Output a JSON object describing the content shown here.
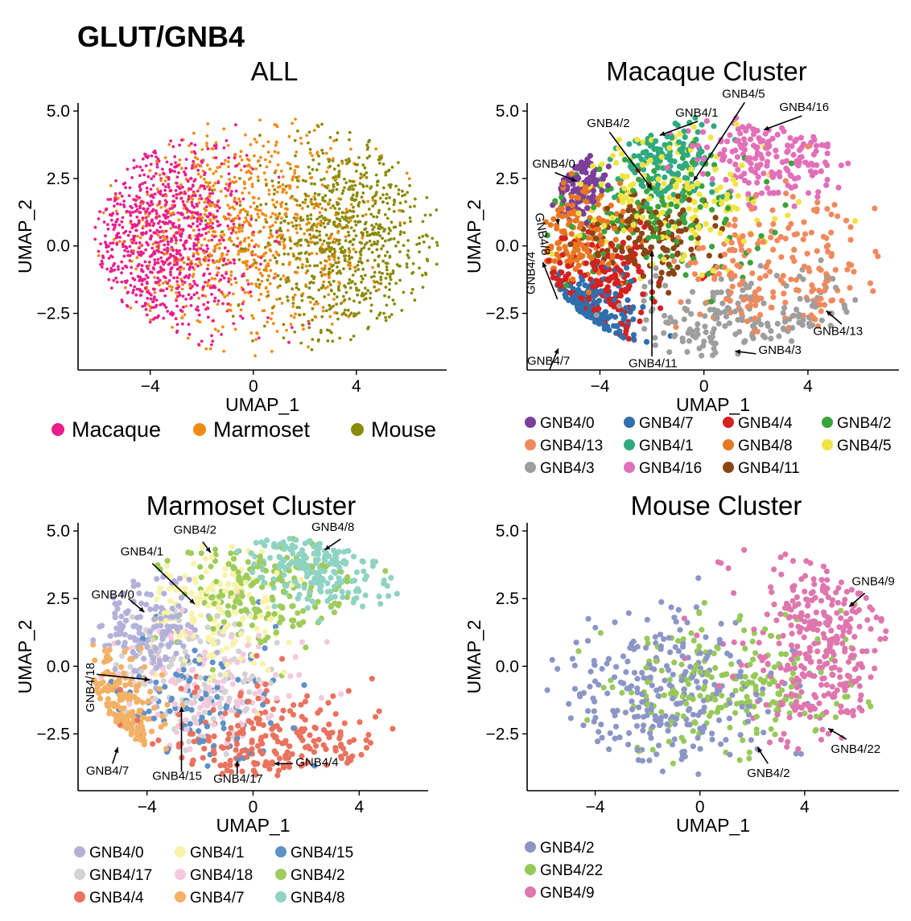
{
  "figure_title": "GLUT/GNB4",
  "chart_data": [
    {
      "id": "all",
      "type": "scatter",
      "title": "ALL",
      "xlabel": "UMAP_1",
      "ylabel": "UMAP_2",
      "xlim": [
        -6.8,
        7.5
      ],
      "ylim": [
        -4.6,
        5.3
      ],
      "xticks": [
        -4,
        0,
        4
      ],
      "yticks": [
        -2.5,
        0.0,
        2.5,
        5.0
      ],
      "xtick_labels": [
        "−4",
        "0",
        "4"
      ],
      "ytick_labels": [
        "−2.5",
        "0.0",
        "2.5",
        "5.0"
      ],
      "legend_placement": "bottom",
      "legend_style": "big",
      "legend_columns": 3,
      "series": [
        {
          "name": "Macaque",
          "color": "#e91e8c",
          "center": [
            -3.6,
            0.4
          ],
          "spread": [
            1.7,
            1.9
          ],
          "n": 900
        },
        {
          "name": "Marmoset",
          "color": "#f28a11",
          "center": [
            -0.2,
            0.6
          ],
          "spread": [
            2.4,
            2.1
          ],
          "n": 800
        },
        {
          "name": "Mouse",
          "color": "#8a8a0a",
          "center": [
            3.6,
            0.3
          ],
          "spread": [
            1.8,
            1.9
          ],
          "n": 800
        }
      ],
      "annotations": []
    },
    {
      "id": "macaque",
      "type": "scatter",
      "title": "Macaque Cluster",
      "xlabel": "UMAP_1",
      "ylabel": "UMAP_2",
      "xlim": [
        -6.8,
        7.5
      ],
      "ylim": [
        -4.6,
        5.3
      ],
      "xticks": [
        -4,
        0,
        4
      ],
      "yticks": [
        -2.5,
        0.0,
        2.5,
        5.0
      ],
      "xtick_labels": [
        "−4",
        "0",
        "4"
      ],
      "ytick_labels": [
        "−2.5",
        "0.0",
        "2.5",
        "5.0"
      ],
      "legend_placement": "bottom",
      "legend_style": "small",
      "legend_columns": 4,
      "series": [
        {
          "name": "GNB4/0",
          "color": "#7b3f9a",
          "center": [
            -5.0,
            2.4
          ],
          "spread": [
            0.7,
            0.6
          ],
          "n": 110
        },
        {
          "name": "GNB4/13",
          "color": "#f08a5d",
          "center": [
            2.8,
            -0.9
          ],
          "spread": [
            2.0,
            1.4
          ],
          "n": 200
        },
        {
          "name": "GNB4/3",
          "color": "#9e9e9e",
          "center": [
            1.4,
            -2.8
          ],
          "spread": [
            2.3,
            0.9
          ],
          "n": 180
        },
        {
          "name": "GNB4/7",
          "color": "#2f6fae",
          "center": [
            -5.0,
            -2.9
          ],
          "spread": [
            1.0,
            0.8
          ],
          "n": 160
        },
        {
          "name": "GNB4/1",
          "color": "#2faa80",
          "center": [
            -1.5,
            3.0
          ],
          "spread": [
            1.0,
            0.9
          ],
          "n": 150
        },
        {
          "name": "GNB4/16",
          "color": "#e26fb9",
          "center": [
            2.6,
            3.4
          ],
          "spread": [
            1.5,
            0.9
          ],
          "n": 180
        },
        {
          "name": "GNB4/4",
          "color": "#d42121",
          "center": [
            -4.2,
            -1.4
          ],
          "spread": [
            1.4,
            1.0
          ],
          "n": 170
        },
        {
          "name": "GNB4/8",
          "color": "#e87722",
          "center": [
            -5.2,
            0.6
          ],
          "spread": [
            1.0,
            1.2
          ],
          "n": 160
        },
        {
          "name": "GNB4/11",
          "color": "#8b4513",
          "center": [
            -2.0,
            0.4
          ],
          "spread": [
            1.2,
            0.8
          ],
          "n": 140
        },
        {
          "name": "GNB4/2",
          "color": "#3aa33a",
          "center": [
            -1.5,
            1.3
          ],
          "spread": [
            2.2,
            1.5
          ],
          "n": 150
        },
        {
          "name": "GNB4/5",
          "color": "#f0e442",
          "center": [
            -1.3,
            1.9
          ],
          "spread": [
            2.0,
            1.4
          ],
          "n": 170
        }
      ],
      "annotations": [
        {
          "text": "GNB4/5",
          "pos": [
            0.7,
            5.5
          ],
          "arrow_to": [
            -0.4,
            2.4
          ]
        },
        {
          "text": "GNB4/1",
          "pos": [
            -1.1,
            4.8
          ],
          "arrow_to": [
            -1.7,
            4.1
          ]
        },
        {
          "text": "GNB4/16",
          "pos": [
            2.9,
            5.0
          ],
          "arrow_to": [
            2.3,
            4.3
          ]
        },
        {
          "text": "GNB4/2",
          "pos": [
            -4.5,
            4.4
          ],
          "arrow_to": [
            -2.0,
            2.1
          ]
        },
        {
          "text": "GNB4/0",
          "pos": [
            -6.6,
            2.9
          ],
          "arrow_to": [
            -4.9,
            2.4
          ]
        },
        {
          "text": "GNB4/8",
          "pos": [
            -6.5,
            1.2
          ],
          "arrow_to": [
            -5.6,
            0.8
          ],
          "rotate": 80
        },
        {
          "text": "GNB4/4",
          "pos": [
            -6.5,
            -1.8
          ],
          "arrow_to": [
            -6.2,
            -0.6
          ],
          "rotate": -90
        },
        {
          "text": "GNB4/7",
          "pos": [
            -6.8,
            -4.4
          ],
          "arrow_to": [
            -5.6,
            -3.8
          ]
        },
        {
          "text": "GNB4/11",
          "pos": [
            -2.9,
            -4.5
          ],
          "arrow_to": [
            -2.0,
            -0.2
          ],
          "arrow_from": [
            -2.0,
            -4.1
          ]
        },
        {
          "text": "GNB4/3",
          "pos": [
            2.1,
            -4.0
          ],
          "arrow_to": [
            1.2,
            -3.9
          ],
          "arrow_from": [
            2.0,
            -4.0
          ]
        },
        {
          "text": "GNB4/13",
          "pos": [
            4.2,
            -3.3
          ],
          "arrow_to": [
            4.7,
            -2.4
          ],
          "arrow_from": [
            5.3,
            -2.9
          ]
        }
      ]
    },
    {
      "id": "marmoset",
      "type": "scatter",
      "title": "Marmoset Cluster",
      "xlabel": "UMAP_1",
      "ylabel": "UMAP_2",
      "xlim": [
        -6.6,
        6.6
      ],
      "ylim": [
        -4.6,
        5.3
      ],
      "xticks": [
        -4,
        0,
        4
      ],
      "yticks": [
        -2.5,
        0.0,
        2.5,
        5.0
      ],
      "xtick_labels": [
        "−4",
        "0",
        "4"
      ],
      "ytick_labels": [
        "−2.5",
        "0.0",
        "2.5",
        "5.0"
      ],
      "legend_placement": "bottom",
      "legend_style": "small",
      "legend_columns": 3,
      "series": [
        {
          "name": "GNB4/0",
          "color": "#b3b1da",
          "center": [
            -3.9,
            1.4
          ],
          "spread": [
            1.0,
            0.9
          ],
          "n": 160
        },
        {
          "name": "GNB4/17",
          "color": "#d3d3d3",
          "center": [
            -2.4,
            -0.4
          ],
          "spread": [
            1.6,
            1.4
          ],
          "n": 120
        },
        {
          "name": "GNB4/4",
          "color": "#e9735f",
          "center": [
            0.6,
            -2.9
          ],
          "spread": [
            2.2,
            1.0
          ],
          "n": 220
        },
        {
          "name": "GNB4/1",
          "color": "#f8f3a8",
          "center": [
            -1.6,
            2.1
          ],
          "spread": [
            1.4,
            1.3
          ],
          "n": 160
        },
        {
          "name": "GNB4/18",
          "color": "#f5c9dd",
          "center": [
            -1.6,
            -0.9
          ],
          "spread": [
            1.8,
            1.3
          ],
          "n": 130
        },
        {
          "name": "GNB4/7",
          "color": "#f2b165",
          "center": [
            -5.3,
            -2.3
          ],
          "spread": [
            0.8,
            1.2
          ],
          "n": 170
        },
        {
          "name": "GNB4/15",
          "color": "#5e91c6",
          "center": [
            -2.0,
            -1.6
          ],
          "spread": [
            1.8,
            1.4
          ],
          "n": 110
        },
        {
          "name": "GNB4/2",
          "color": "#9fcc5a",
          "center": [
            0.2,
            2.8
          ],
          "spread": [
            1.7,
            1.1
          ],
          "n": 170
        },
        {
          "name": "GNB4/8",
          "color": "#8fd3c3",
          "center": [
            2.5,
            3.8
          ],
          "spread": [
            1.3,
            0.8
          ],
          "n": 210
        }
      ],
      "annotations": [
        {
          "text": "GNB4/8",
          "pos": [
            2.2,
            5.0
          ],
          "arrow_to": [
            2.7,
            4.3
          ],
          "arrow_from": [
            3.3,
            4.7
          ]
        },
        {
          "text": "GNB4/2",
          "pos": [
            -3.0,
            4.9
          ],
          "arrow_to": [
            -1.6,
            4.2
          ],
          "arrow_from": [
            -1.9,
            4.6
          ]
        },
        {
          "text": "GNB4/1",
          "pos": [
            -5.0,
            4.1
          ],
          "arrow_to": [
            -2.2,
            2.3
          ],
          "arrow_from": [
            -3.8,
            3.8
          ]
        },
        {
          "text": "GNB4/0",
          "pos": [
            -6.1,
            2.5
          ],
          "arrow_to": [
            -4.1,
            2.0
          ],
          "arrow_from": [
            -4.7,
            2.5
          ]
        },
        {
          "text": "GNB4/18",
          "pos": [
            -6.0,
            -1.7
          ],
          "arrow_to": [
            -3.9,
            -0.5
          ],
          "arrow_from": [
            -5.9,
            -0.3
          ],
          "rotate": -90
        },
        {
          "text": "GNB4/7",
          "pos": [
            -6.3,
            -4.0
          ],
          "arrow_to": [
            -5.1,
            -3.0
          ],
          "arrow_from": [
            -5.3,
            -3.6
          ]
        },
        {
          "text": "GNB4/15",
          "pos": [
            -3.8,
            -4.2
          ],
          "arrow_to": [
            -2.7,
            -1.5
          ],
          "arrow_from": [
            -2.7,
            -3.9
          ]
        },
        {
          "text": "GNB4/17",
          "pos": [
            -1.5,
            -4.3
          ],
          "arrow_to": [
            -0.6,
            -3.5
          ],
          "arrow_from": [
            -0.6,
            -4.0
          ]
        },
        {
          "text": "GNB4/4",
          "pos": [
            1.6,
            -3.7
          ],
          "arrow_to": [
            0.8,
            -3.6
          ],
          "arrow_from": [
            1.5,
            -3.6
          ]
        }
      ]
    },
    {
      "id": "mouse",
      "type": "scatter",
      "title": "Mouse Cluster",
      "xlabel": "UMAP_1",
      "ylabel": "UMAP_2",
      "xlim": [
        -6.6,
        7.6
      ],
      "ylim": [
        -4.6,
        5.3
      ],
      "xticks": [
        -4,
        0,
        4
      ],
      "yticks": [
        -2.5,
        0.0,
        2.5,
        5.0
      ],
      "xtick_labels": [
        "−4",
        "0",
        "4"
      ],
      "ytick_labels": [
        "−2.5",
        "0.0",
        "2.5",
        "5.0"
      ],
      "legend_placement": "bottom",
      "legend_style": "small",
      "legend_columns": 1,
      "series": [
        {
          "name": "GNB4/2",
          "color": "#8c96c6",
          "center": [
            -1.3,
            -1.0
          ],
          "spread": [
            2.2,
            1.6
          ],
          "n": 260
        },
        {
          "name": "GNB4/22",
          "color": "#97c95a",
          "center": [
            1.0,
            -0.7
          ],
          "spread": [
            2.4,
            1.3
          ],
          "n": 230
        },
        {
          "name": "GNB4/9",
          "color": "#de77ae",
          "center": [
            4.5,
            1.0
          ],
          "spread": [
            1.6,
            2.0
          ],
          "n": 320
        }
      ],
      "annotations": [
        {
          "text": "GNB4/9",
          "pos": [
            5.8,
            3.0
          ],
          "arrow_to": [
            5.7,
            2.2
          ],
          "arrow_from": [
            6.3,
            2.7
          ]
        },
        {
          "text": "GNB4/22",
          "pos": [
            5.0,
            -3.2
          ],
          "arrow_to": [
            4.9,
            -2.3
          ],
          "arrow_from": [
            5.6,
            -2.7
          ]
        },
        {
          "text": "GNB4/2",
          "pos": [
            1.8,
            -4.1
          ],
          "arrow_to": [
            2.2,
            -3.0
          ],
          "arrow_from": [
            2.6,
            -3.6
          ]
        }
      ]
    }
  ]
}
